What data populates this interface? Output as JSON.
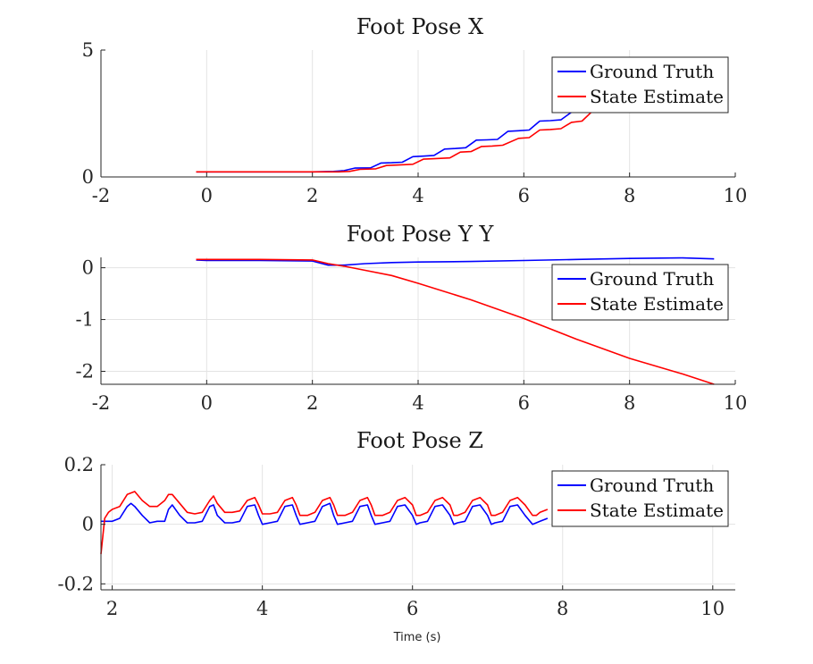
{
  "chart_data": [
    {
      "type": "line",
      "title": "Foot Pose X",
      "xlabel": "",
      "ylabel": "",
      "xlim": [
        -2,
        10
      ],
      "ylim": [
        0,
        5
      ],
      "xticks": [
        -2,
        0,
        2,
        4,
        6,
        8,
        10
      ],
      "yticks": [
        0,
        5
      ],
      "xtick_labels": [
        "-2",
        "0",
        "2",
        "4",
        "6",
        "8",
        "10"
      ],
      "ytick_labels": [
        "0",
        "5"
      ],
      "grid": true,
      "legend": "top-right",
      "series": [
        {
          "name": "Ground Truth",
          "color": "#0000ff",
          "x": [
            -0.2,
            0,
            1,
            2,
            2.4,
            2.6,
            2.8,
            3.1,
            3.3,
            3.5,
            3.7,
            3.9,
            4.1,
            4.3,
            4.5,
            4.7,
            4.9,
            5.1,
            5.3,
            5.5,
            5.7,
            5.9,
            6.1,
            6.3,
            6.5,
            6.7,
            6.9,
            7.1,
            7.3,
            7.6
          ],
          "y": [
            0.2,
            0.2,
            0.2,
            0.2,
            0.22,
            0.25,
            0.35,
            0.36,
            0.55,
            0.56,
            0.58,
            0.8,
            0.82,
            0.85,
            1.1,
            1.12,
            1.15,
            1.45,
            1.46,
            1.48,
            1.8,
            1.82,
            1.85,
            2.2,
            2.22,
            2.25,
            2.55,
            2.6,
            2.65,
            2.7
          ]
        },
        {
          "name": "State Estimate",
          "color": "#ff0000",
          "x": [
            -0.2,
            0,
            1,
            2,
            2.5,
            2.7,
            2.9,
            3.2,
            3.4,
            3.6,
            3.9,
            4.1,
            4.3,
            4.6,
            4.8,
            5.0,
            5.2,
            5.4,
            5.6,
            5.9,
            6.1,
            6.3,
            6.5,
            6.7,
            6.9,
            7.1,
            7.3,
            7.6
          ],
          "y": [
            0.2,
            0.2,
            0.2,
            0.2,
            0.2,
            0.22,
            0.3,
            0.32,
            0.45,
            0.47,
            0.5,
            0.7,
            0.72,
            0.75,
            0.98,
            1.0,
            1.2,
            1.22,
            1.25,
            1.52,
            1.55,
            1.85,
            1.87,
            1.9,
            2.15,
            2.2,
            2.6,
            2.65
          ]
        }
      ]
    },
    {
      "type": "line",
      "title": "Foot Pose Y Y",
      "xlabel": "",
      "ylabel": "",
      "xlim": [
        -2,
        10
      ],
      "ylim": [
        -2.25,
        0.2
      ],
      "xticks": [
        -2,
        0,
        2,
        4,
        6,
        8,
        10
      ],
      "yticks": [
        0,
        -1,
        -2
      ],
      "xtick_labels": [
        "-2",
        "0",
        "2",
        "4",
        "6",
        "8",
        "10"
      ],
      "ytick_labels": [
        "0",
        "-1",
        "-2"
      ],
      "grid": true,
      "legend": "right",
      "series": [
        {
          "name": "Ground Truth",
          "color": "#0000ff",
          "x": [
            -0.2,
            0,
            1,
            2,
            2.3,
            2.6,
            3,
            3.5,
            4,
            5,
            6,
            7,
            8,
            9,
            9.6
          ],
          "y": [
            0.15,
            0.14,
            0.14,
            0.13,
            0.05,
            0.05,
            0.08,
            0.1,
            0.11,
            0.12,
            0.14,
            0.16,
            0.18,
            0.19,
            0.17
          ]
        },
        {
          "name": "State Estimate",
          "color": "#ff0000",
          "x": [
            -0.2,
            0,
            1,
            2,
            2.3,
            2.6,
            3,
            3.5,
            4,
            5,
            6,
            7,
            8,
            9,
            9.6
          ],
          "y": [
            0.16,
            0.16,
            0.16,
            0.15,
            0.08,
            0.03,
            -0.05,
            -0.15,
            -0.3,
            -0.62,
            -0.98,
            -1.38,
            -1.75,
            -2.05,
            -2.25
          ]
        }
      ]
    },
    {
      "type": "line",
      "title": "Foot Pose Z",
      "xlabel": "Time (s)",
      "ylabel": "",
      "xlim": [
        1.85,
        10.3
      ],
      "ylim": [
        -0.22,
        0.2
      ],
      "xticks": [
        2,
        4,
        6,
        8,
        10
      ],
      "yticks": [
        0.2,
        0,
        -0.2
      ],
      "xtick_labels": [
        "2",
        "4",
        "6",
        "8",
        "10"
      ],
      "ytick_labels": [
        "0.2",
        "0",
        "-0.2"
      ],
      "grid": true,
      "legend": "top-right",
      "series": [
        {
          "name": "Ground Truth",
          "color": "#0000ff",
          "x": [
            1.85,
            1.9,
            2.0,
            2.1,
            2.2,
            2.25,
            2.3,
            2.4,
            2.5,
            2.6,
            2.7,
            2.75,
            2.8,
            2.9,
            3.0,
            3.1,
            3.2,
            3.3,
            3.35,
            3.4,
            3.5,
            3.6,
            3.7,
            3.8,
            3.9,
            3.95,
            4.0,
            4.1,
            4.2,
            4.3,
            4.4,
            4.45,
            4.5,
            4.6,
            4.7,
            4.8,
            4.9,
            4.95,
            5.0,
            5.1,
            5.2,
            5.3,
            5.4,
            5.45,
            5.5,
            5.6,
            5.7,
            5.8,
            5.9,
            6.0,
            6.05,
            6.1,
            6.2,
            6.3,
            6.4,
            6.5,
            6.55,
            6.6,
            6.7,
            6.8,
            6.9,
            7.0,
            7.05,
            7.1,
            7.2,
            7.3,
            7.4,
            7.5,
            7.6,
            7.65,
            7.7,
            7.8
          ],
          "y": [
            0.01,
            0.01,
            0.01,
            0.02,
            0.06,
            0.07,
            0.06,
            0.03,
            0.005,
            0.01,
            0.01,
            0.05,
            0.065,
            0.03,
            0.005,
            0.005,
            0.01,
            0.06,
            0.065,
            0.03,
            0.005,
            0.005,
            0.01,
            0.06,
            0.065,
            0.03,
            0.0,
            0.005,
            0.01,
            0.06,
            0.065,
            0.03,
            0.0,
            0.005,
            0.01,
            0.06,
            0.07,
            0.03,
            0.0,
            0.005,
            0.01,
            0.06,
            0.065,
            0.03,
            0.0,
            0.005,
            0.01,
            0.06,
            0.065,
            0.03,
            0.0,
            0.005,
            0.01,
            0.06,
            0.065,
            0.03,
            0.0,
            0.005,
            0.01,
            0.06,
            0.065,
            0.03,
            0.0,
            0.005,
            0.01,
            0.06,
            0.065,
            0.03,
            0.0,
            0.005,
            0.01,
            0.02
          ]
        },
        {
          "name": "State Estimate",
          "color": "#ff0000",
          "x": [
            1.85,
            1.9,
            1.95,
            2.0,
            2.1,
            2.2,
            2.3,
            2.4,
            2.5,
            2.6,
            2.7,
            2.75,
            2.8,
            2.9,
            3.0,
            3.1,
            3.2,
            3.3,
            3.35,
            3.4,
            3.5,
            3.6,
            3.7,
            3.8,
            3.9,
            3.95,
            4.0,
            4.1,
            4.2,
            4.3,
            4.4,
            4.45,
            4.5,
            4.6,
            4.7,
            4.8,
            4.9,
            4.95,
            5.0,
            5.1,
            5.2,
            5.3,
            5.4,
            5.45,
            5.5,
            5.6,
            5.7,
            5.8,
            5.9,
            6.0,
            6.05,
            6.1,
            6.2,
            6.3,
            6.4,
            6.5,
            6.55,
            6.6,
            6.7,
            6.8,
            6.9,
            7.0,
            7.05,
            7.1,
            7.2,
            7.3,
            7.4,
            7.5,
            7.6,
            7.65,
            7.7,
            7.8
          ],
          "y": [
            -0.1,
            0.02,
            0.04,
            0.05,
            0.06,
            0.1,
            0.11,
            0.08,
            0.06,
            0.06,
            0.08,
            0.1,
            0.1,
            0.07,
            0.04,
            0.035,
            0.04,
            0.08,
            0.095,
            0.07,
            0.04,
            0.04,
            0.045,
            0.08,
            0.09,
            0.065,
            0.035,
            0.035,
            0.04,
            0.08,
            0.09,
            0.065,
            0.03,
            0.03,
            0.04,
            0.08,
            0.09,
            0.065,
            0.03,
            0.03,
            0.04,
            0.08,
            0.09,
            0.065,
            0.03,
            0.03,
            0.04,
            0.08,
            0.09,
            0.065,
            0.03,
            0.03,
            0.04,
            0.08,
            0.09,
            0.065,
            0.03,
            0.03,
            0.04,
            0.08,
            0.09,
            0.065,
            0.03,
            0.03,
            0.04,
            0.08,
            0.09,
            0.065,
            0.03,
            0.03,
            0.04,
            0.05
          ]
        }
      ]
    }
  ]
}
